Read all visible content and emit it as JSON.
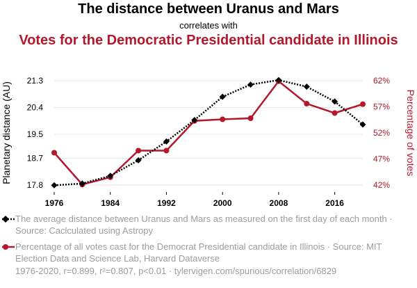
{
  "header": {
    "title_primary": "The distance between Uranus and Mars",
    "connector": "correlates with",
    "title_secondary": "Votes for the Democratic Presidential candidate in Illinois"
  },
  "chart_data": {
    "type": "line",
    "x": [
      1976,
      1980,
      1984,
      1988,
      1992,
      1996,
      2000,
      2004,
      2008,
      2012,
      2016,
      2020
    ],
    "x_ticks": [
      "1976",
      "1984",
      "1992",
      "2000",
      "2008",
      "2016"
    ],
    "x_tick_values": [
      1976,
      1984,
      1992,
      2000,
      2008,
      2016
    ],
    "xlim": [
      1976,
      2020
    ],
    "grid": true,
    "legend_position": "bottom",
    "left_axis": {
      "label": "Planetary distance (AU)",
      "ticks": [
        "17.8",
        "18.7",
        "19.5",
        "20.4",
        "21.3"
      ],
      "tick_values": [
        17.8,
        18.7,
        19.5,
        20.4,
        21.3
      ],
      "lim": [
        17.8,
        21.3
      ],
      "color": "#000000"
    },
    "right_axis": {
      "label": "Percentage of votes",
      "ticks": [
        "42%",
        "47%",
        "52%",
        "57%",
        "62%"
      ],
      "tick_values": [
        42,
        47,
        52,
        57,
        62
      ],
      "lim": [
        42,
        62
      ],
      "color": "#b4182d"
    },
    "series": [
      {
        "axis": "left",
        "color": "#000000",
        "style": "dotted",
        "marker": "diamond",
        "values": [
          17.79,
          17.85,
          18.11,
          18.63,
          19.26,
          19.98,
          20.76,
          21.17,
          21.32,
          21.1,
          20.6,
          19.83
        ]
      },
      {
        "axis": "right",
        "color": "#b4182d",
        "style": "solid",
        "marker": "circle",
        "values": [
          48.2,
          42.1,
          43.5,
          48.6,
          48.6,
          54.3,
          54.6,
          54.8,
          61.9,
          57.6,
          55.8,
          57.5
        ]
      }
    ]
  },
  "legend": {
    "items": [
      {
        "text": "The average distance between Uranus and Mars as measured on the first day of each month · Source: Caclculated using Astropy"
      },
      {
        "text": "Percentage of all votes cast for the Democrat Presidential candidate in Illinois · Source: MIT Election Data and Science Lab, Harvard Dataverse"
      }
    ]
  },
  "footer": {
    "text": "1976-2020, r=0.899, r²=0.807, p<0.01 · tylervigen.com/spurious/correlation/6829"
  }
}
